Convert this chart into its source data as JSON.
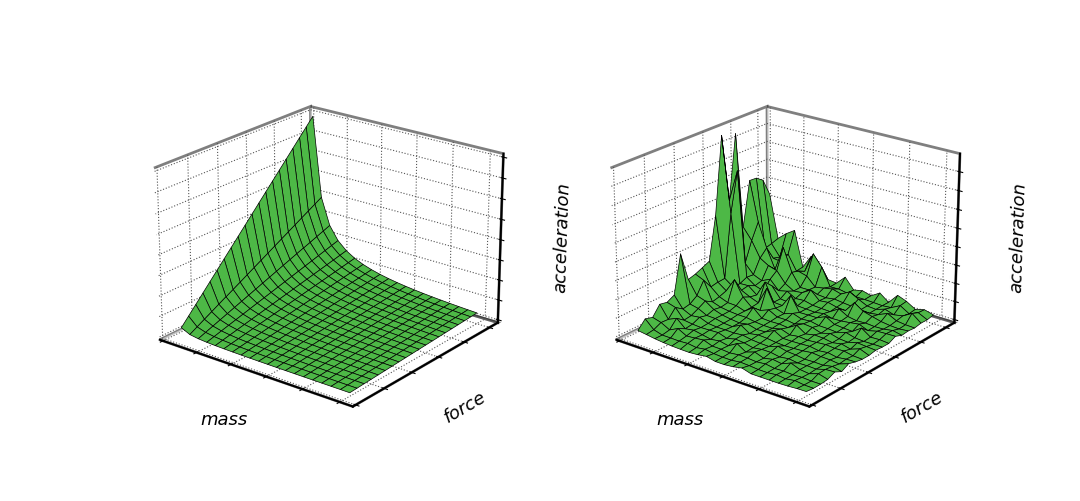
{
  "surface_color": "#4db846",
  "edge_color": "#000000",
  "background_color": "#ffffff",
  "xlabel": "mass",
  "ylabel": "force",
  "zlabel": "acceleration",
  "grid_n": 20,
  "noise_grid_n": 20,
  "elev": 22,
  "azim": -52,
  "label_fontsize": 13,
  "alpha": 1.0,
  "linewidth": 0.5,
  "pane_linewidth": 2.0
}
